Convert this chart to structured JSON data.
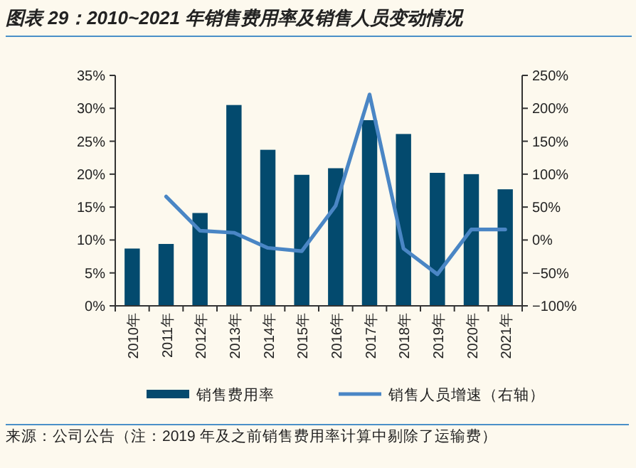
{
  "chart_data": {
    "type": "bar",
    "title": "图表 29：2010~2021 年销售费用率及销售人员变动情况",
    "categories": [
      "2010年",
      "2011年",
      "2012年",
      "2013年",
      "2014年",
      "2015年",
      "2016年",
      "2017年",
      "2018年",
      "2019年",
      "2020年",
      "2021年"
    ],
    "series": [
      {
        "name": "销售费用率",
        "color": "#034a6e",
        "values": [
          8.7,
          9.4,
          14.1,
          30.5,
          23.7,
          19.9,
          20.9,
          28.2,
          26.1,
          20.2,
          20.0,
          17.7
        ]
      },
      {
        "name": "销售人员增速（右轴）",
        "type": "line",
        "axis": "y2",
        "color": "#4a86c5",
        "values": [
          null,
          66,
          14,
          11,
          -12,
          -17,
          52,
          221,
          -13,
          -52,
          16,
          16
        ]
      }
    ],
    "ylim": [
      0,
      35
    ],
    "yticks": [
      {
        "value": 0,
        "label": "0%"
      },
      {
        "value": 5,
        "label": "5%"
      },
      {
        "value": 10,
        "label": "10%"
      },
      {
        "value": 15,
        "label": "15%"
      },
      {
        "value": 20,
        "label": "20%"
      },
      {
        "value": 25,
        "label": "25%"
      },
      {
        "value": 30,
        "label": "30%"
      },
      {
        "value": 35,
        "label": "35%"
      }
    ],
    "y2lim": [
      -100,
      250
    ],
    "y2ticks": [
      {
        "value": -100,
        "label": "−100%"
      },
      {
        "value": -50,
        "label": "−50%"
      },
      {
        "value": 0,
        "label": "0%"
      },
      {
        "value": 50,
        "label": "50%"
      },
      {
        "value": 100,
        "label": "100%"
      },
      {
        "value": 150,
        "label": "150%"
      },
      {
        "value": 200,
        "label": "200%"
      },
      {
        "value": 250,
        "label": "250%"
      }
    ],
    "grid": false,
    "legend": "bottom",
    "marker": "none",
    "line_style": "solid",
    "annotations": [
      "来源：公司公告（注：2019 年及之前销售费用率计算中剔除了运输费）"
    ]
  }
}
